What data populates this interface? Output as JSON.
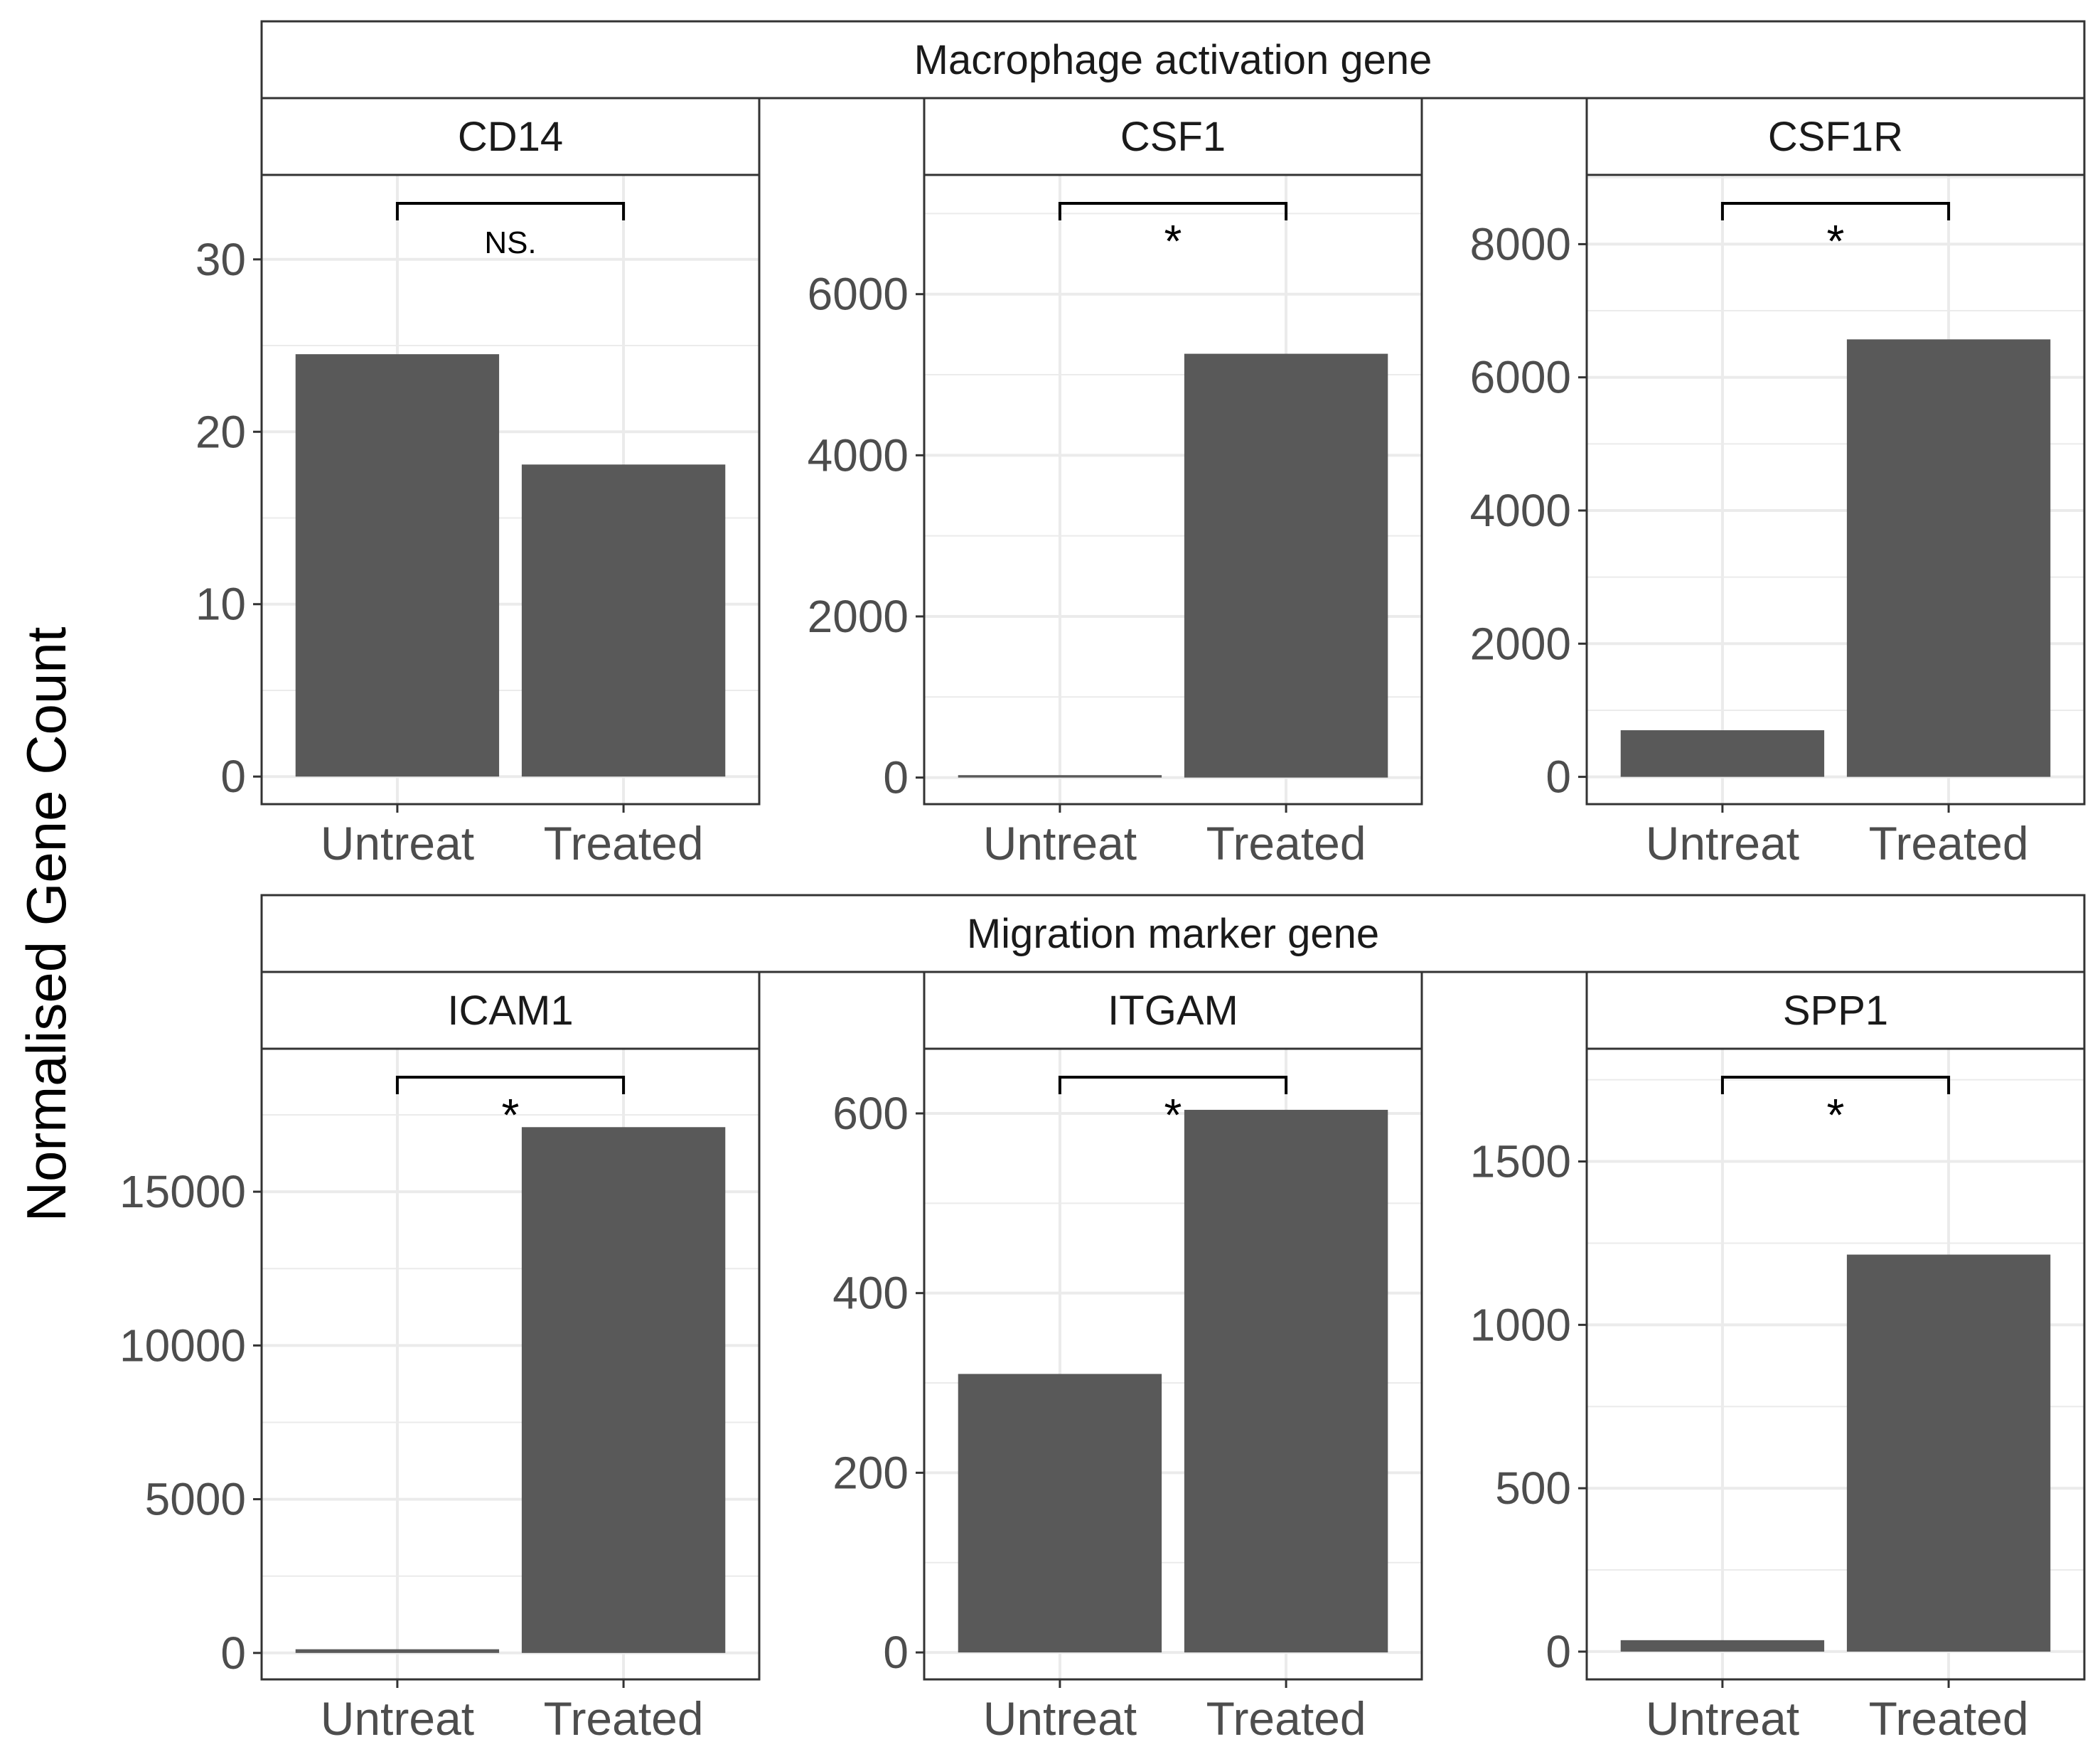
{
  "ylabel": "Normalised Gene Count",
  "chart_data": [
    {
      "type": "bar",
      "group": "Macrophage activation gene",
      "title": "CD14",
      "categories": [
        "Untreat",
        "Treated"
      ],
      "values": [
        24.5,
        18.1
      ],
      "ylim": [
        -1.6,
        34.9
      ],
      "ticks": [
        0,
        10,
        20,
        30
      ],
      "minor_ticks": [
        5,
        15,
        25
      ],
      "significance": "NS."
    },
    {
      "type": "bar",
      "group": "Macrophage activation gene",
      "title": "CSF1",
      "categories": [
        "Untreat",
        "Treated"
      ],
      "values": [
        30,
        5260
      ],
      "ylim": [
        -330,
        7480
      ],
      "ticks": [
        0,
        2000,
        4000,
        6000
      ],
      "minor_ticks": [
        1000,
        3000,
        5000,
        7000
      ],
      "significance": "*"
    },
    {
      "type": "bar",
      "group": "Macrophage activation gene",
      "title": "CSF1R",
      "categories": [
        "Untreat",
        "Treated"
      ],
      "values": [
        700,
        6570
      ],
      "ylim": [
        -410,
        9040
      ],
      "ticks": [
        0,
        2000,
        4000,
        6000,
        8000
      ],
      "minor_ticks": [
        1000,
        3000,
        5000,
        7000,
        9000
      ],
      "significance": "*"
    },
    {
      "type": "bar",
      "group": "Migration marker gene",
      "title": "ICAM1",
      "categories": [
        "Untreat",
        "Treated"
      ],
      "values": [
        120,
        17100
      ],
      "ylim": [
        -860,
        19650
      ],
      "ticks": [
        0,
        5000,
        10000,
        15000
      ],
      "minor_ticks": [
        2500,
        7500,
        12500,
        17500
      ],
      "significance": "*"
    },
    {
      "type": "bar",
      "group": "Migration marker gene",
      "title": "ITGAM",
      "categories": [
        "Untreat",
        "Treated"
      ],
      "values": [
        310,
        604
      ],
      "ylim": [
        -30,
        672
      ],
      "ticks": [
        0,
        200,
        400,
        600
      ],
      "minor_ticks": [
        100,
        300,
        500
      ],
      "significance": "*"
    },
    {
      "type": "bar",
      "group": "Migration marker gene",
      "title": "SPP1",
      "categories": [
        "Untreat",
        "Treated"
      ],
      "values": [
        35,
        1215
      ],
      "ylim": [
        -85,
        1845
      ],
      "ticks": [
        0,
        500,
        1000,
        1500
      ],
      "minor_ticks": [
        250,
        750,
        1250,
        1750
      ],
      "significance": "*"
    }
  ]
}
